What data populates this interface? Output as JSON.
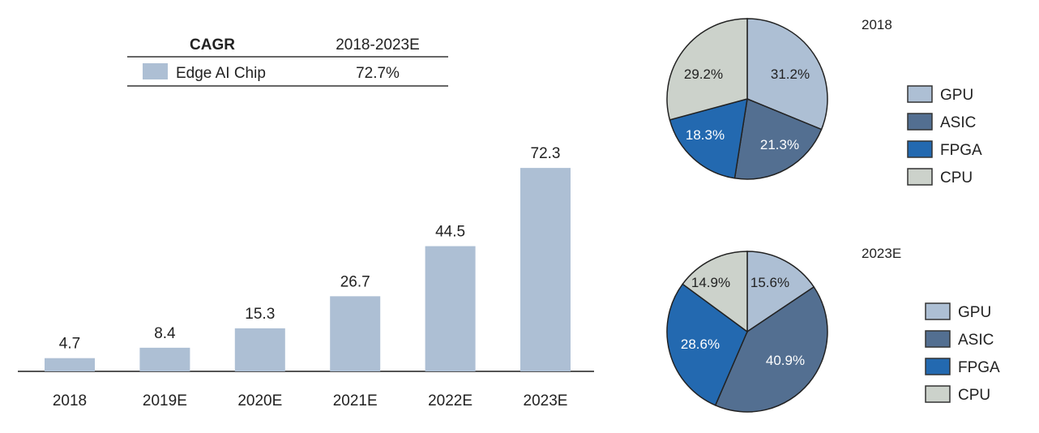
{
  "chart_data": [
    {
      "type": "bar",
      "categories": [
        "2018",
        "2019E",
        "2020E",
        "2021E",
        "2022E",
        "2023E"
      ],
      "values": [
        4.7,
        8.4,
        15.3,
        26.7,
        44.5,
        72.3
      ],
      "data_labels": [
        "4.7",
        "8.4",
        "15.3",
        "26.7",
        "44.5",
        "72.3"
      ],
      "ylim": [
        0,
        80
      ],
      "grid": false,
      "bar_color": "#adbfd4",
      "axis_color": "#555555",
      "cagr_table": {
        "header": [
          "CAGR",
          "2018-2023E"
        ],
        "rows": [
          {
            "label": "Edge AI Chip",
            "value": "72.7%"
          }
        ]
      }
    },
    {
      "type": "pie",
      "title": "2018",
      "labels": [
        "GPU",
        "ASIC",
        "FPGA",
        "CPU"
      ],
      "values": [
        31.2,
        21.3,
        18.3,
        29.2
      ],
      "value_labels": [
        "31.2%",
        "21.3%",
        "18.3%",
        "29.2%"
      ],
      "colors": [
        "#adbfd4",
        "#536f91",
        "#2369b0",
        "#ccd2cb"
      ],
      "legend": [
        "GPU",
        "ASIC",
        "FPGA",
        "CPU"
      ],
      "legend_position": "right"
    },
    {
      "type": "pie",
      "title": "2023E",
      "labels": [
        "GPU",
        "ASIC",
        "FPGA",
        "CPU"
      ],
      "values": [
        15.6,
        40.9,
        28.6,
        14.9
      ],
      "value_labels": [
        "15.6%",
        "40.9%",
        "28.6%",
        "14.9%"
      ],
      "colors": [
        "#adbfd4",
        "#536f91",
        "#2369b0",
        "#ccd2cb"
      ],
      "legend": [
        "GPU",
        "ASIC",
        "FPGA",
        "CPU"
      ],
      "legend_position": "right"
    }
  ]
}
